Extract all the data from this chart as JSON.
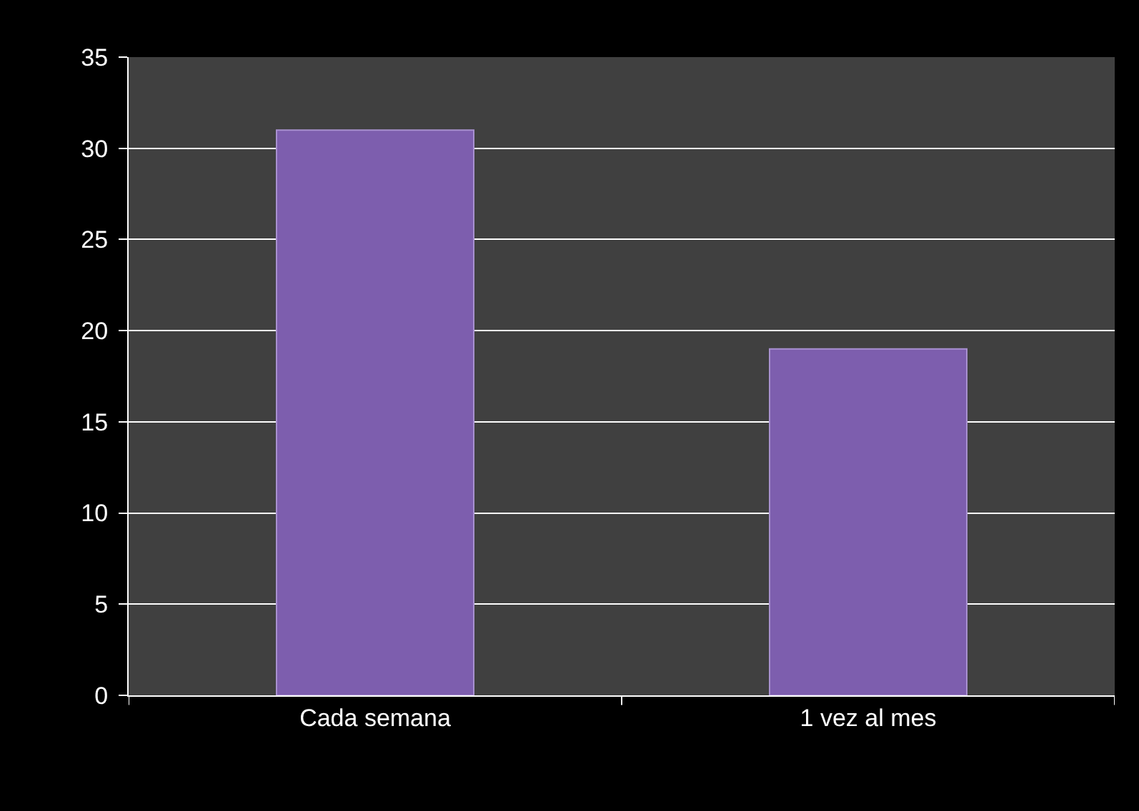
{
  "chart_data": {
    "type": "bar",
    "categories": [
      "Cada semana",
      "1 vez al mes"
    ],
    "values": [
      31,
      19
    ],
    "color": "#7d5eae",
    "ylim": [
      0,
      35
    ],
    "yticks": [
      0,
      5,
      10,
      15,
      20,
      25,
      30,
      35
    ],
    "grid": "y",
    "legend": false
  }
}
